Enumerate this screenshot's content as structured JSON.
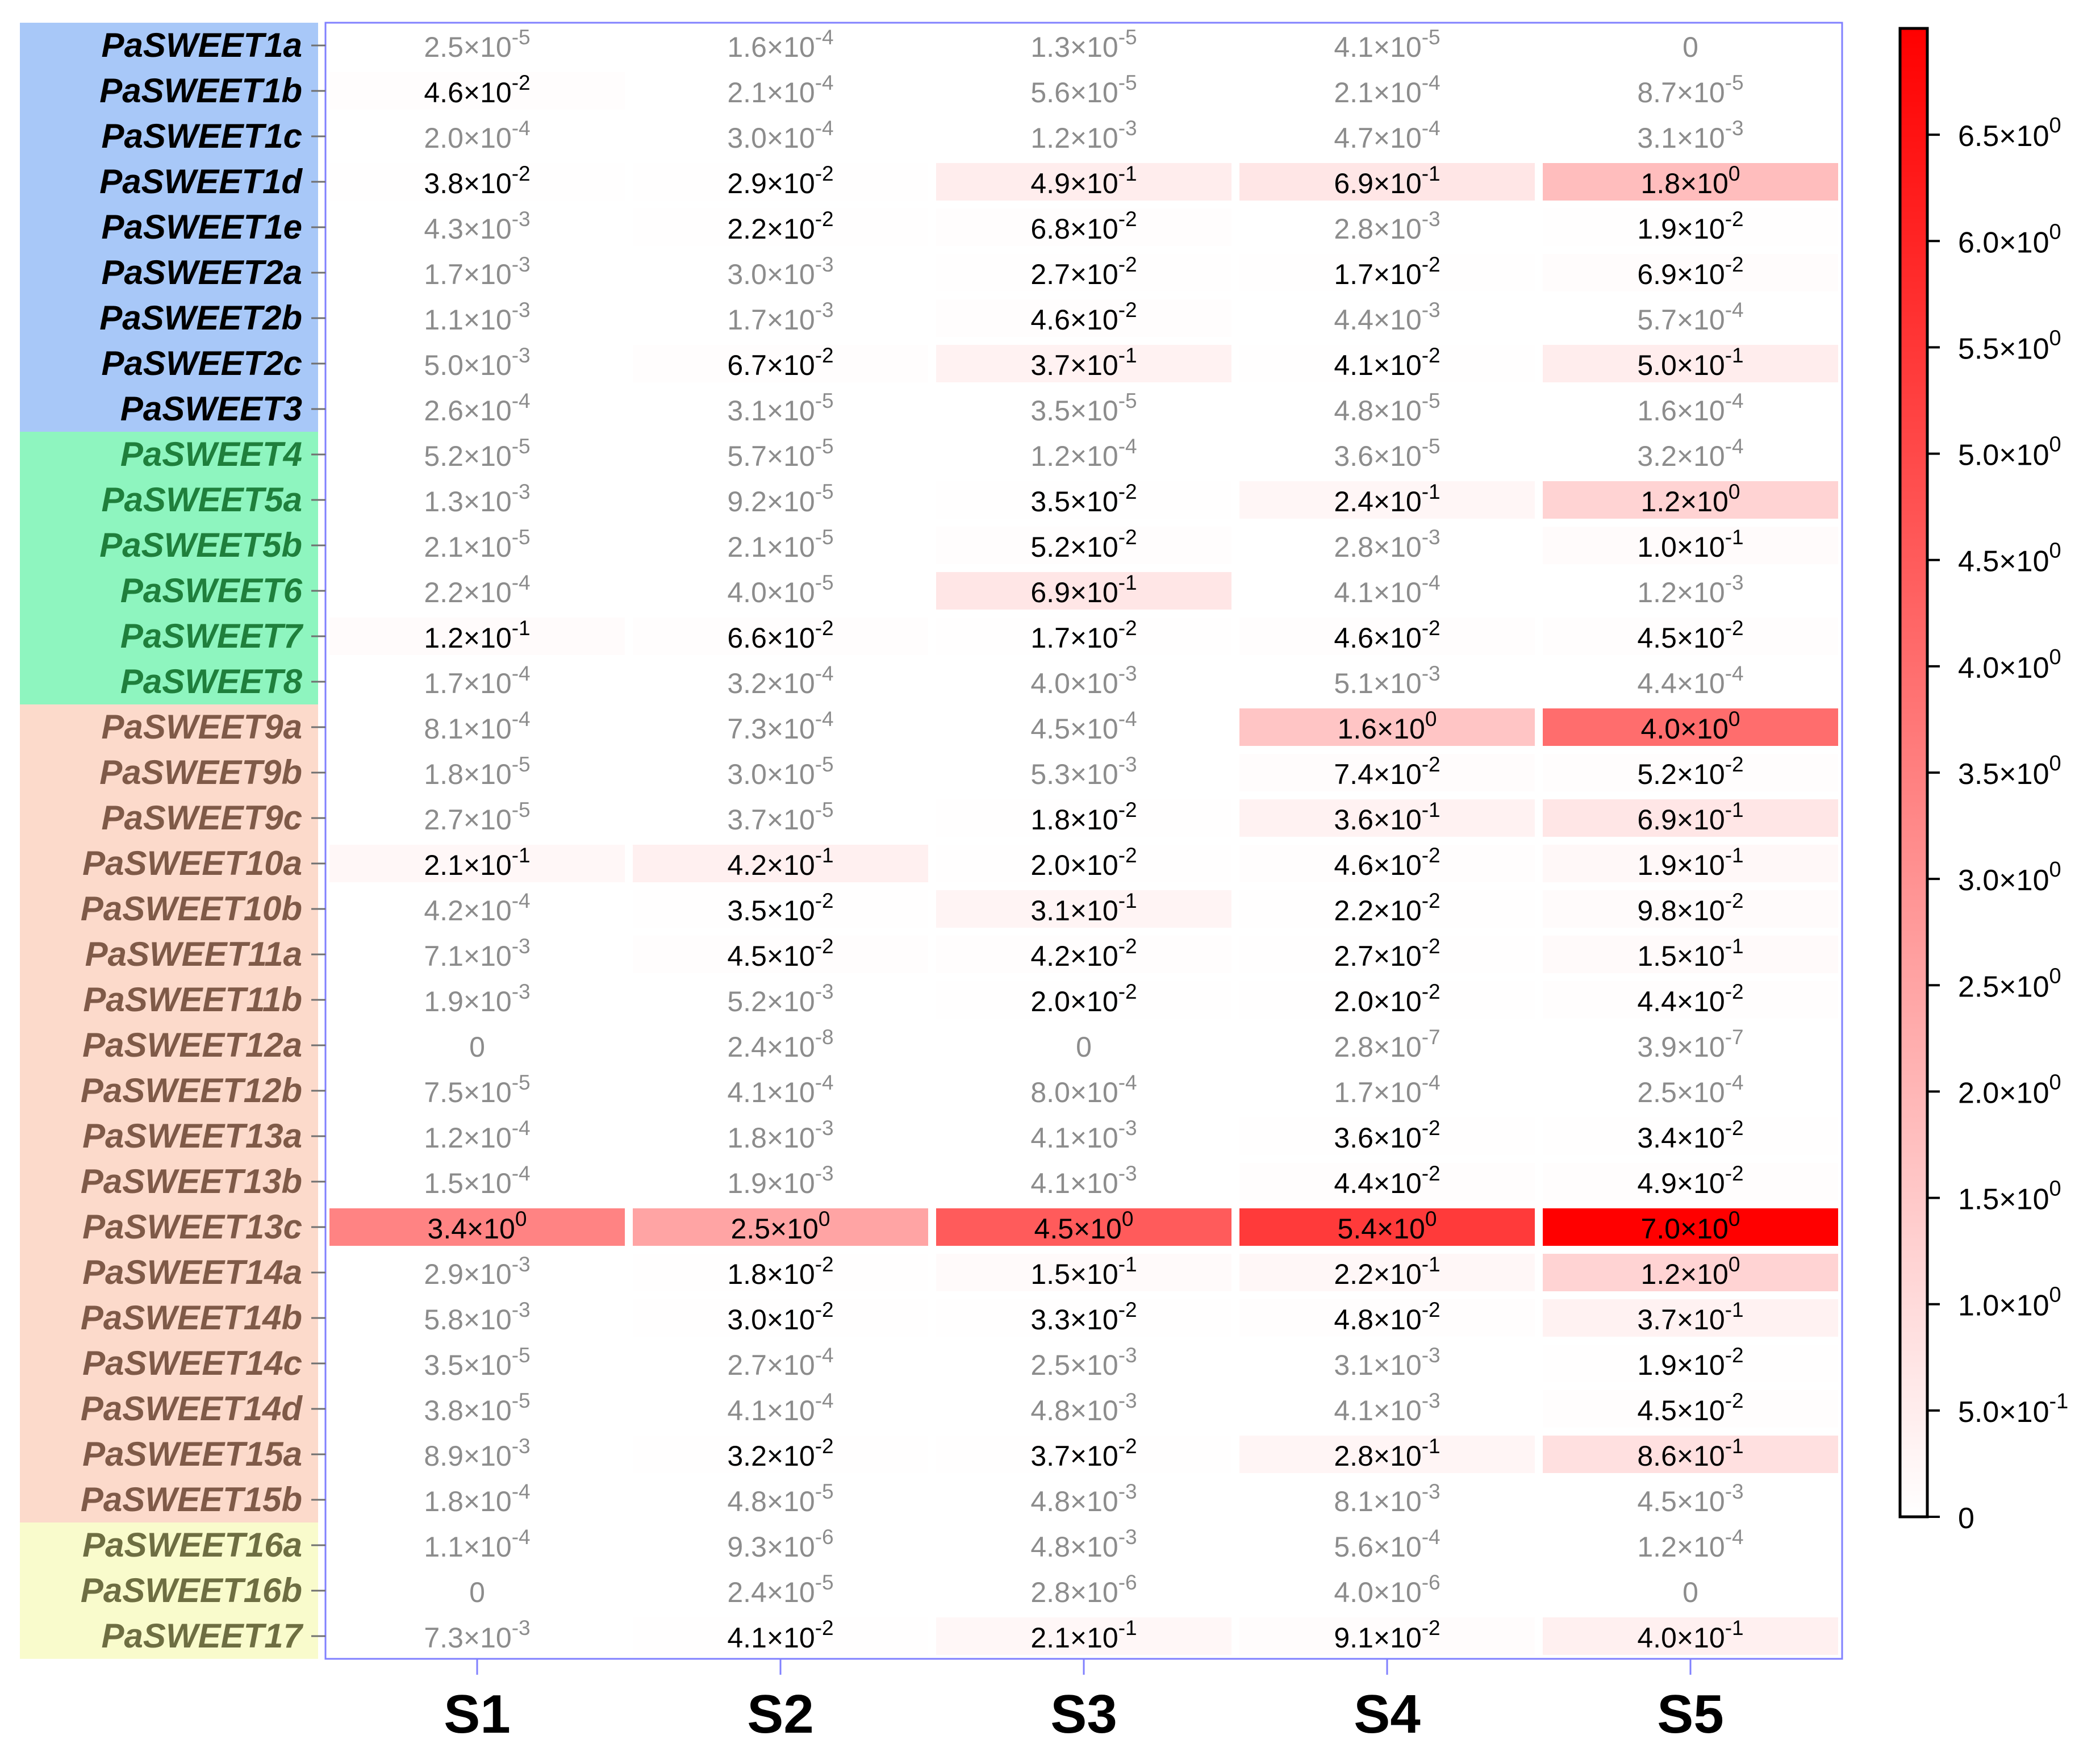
{
  "chart_data": {
    "type": "heatmap",
    "columns": [
      "S1",
      "S2",
      "S3",
      "S4",
      "S5"
    ],
    "rows": [
      "PaSWEET1a",
      "PaSWEET1b",
      "PaSWEET1c",
      "PaSWEET1d",
      "PaSWEET1e",
      "PaSWEET2a",
      "PaSWEET2b",
      "PaSWEET2c",
      "PaSWEET3",
      "PaSWEET4",
      "PaSWEET5a",
      "PaSWEET5b",
      "PaSWEET6",
      "PaSWEET7",
      "PaSWEET8",
      "PaSWEET9a",
      "PaSWEET9b",
      "PaSWEET9c",
      "PaSWEET10a",
      "PaSWEET10b",
      "PaSWEET11a",
      "PaSWEET11b",
      "PaSWEET12a",
      "PaSWEET12b",
      "PaSWEET13a",
      "PaSWEET13b",
      "PaSWEET13c",
      "PaSWEET14a",
      "PaSWEET14b",
      "PaSWEET14c",
      "PaSWEET14d",
      "PaSWEET15a",
      "PaSWEET15b",
      "PaSWEET16a",
      "PaSWEET16b",
      "PaSWEET17"
    ],
    "values": [
      [
        2.5e-05,
        0.00016,
        1.3e-05,
        4.1e-05,
        0
      ],
      [
        0.046,
        0.00021,
        5.6e-05,
        0.00021,
        8.7e-05
      ],
      [
        0.0002,
        0.0003,
        0.0012,
        0.00047,
        0.0031
      ],
      [
        0.038,
        0.029,
        0.49,
        0.69,
        1.8
      ],
      [
        0.0043,
        0.022,
        0.068,
        0.0028,
        0.019
      ],
      [
        0.0017,
        0.003,
        0.027,
        0.017,
        0.069
      ],
      [
        0.0011,
        0.0017,
        0.046,
        0.0044,
        0.00057
      ],
      [
        0.005,
        0.067,
        0.37,
        0.041,
        0.5
      ],
      [
        0.00026,
        3.1e-05,
        3.5e-05,
        4.8e-05,
        0.00016
      ],
      [
        5.2e-05,
        5.7e-05,
        0.00012,
        3.6e-05,
        0.00032
      ],
      [
        0.0013,
        9.2e-05,
        0.035,
        0.24,
        1.2
      ],
      [
        2.1e-05,
        2.1e-05,
        0.052,
        0.0028,
        0.1
      ],
      [
        0.00022,
        4e-05,
        0.69,
        0.00041,
        0.0012
      ],
      [
        0.12,
        0.066,
        0.017,
        0.046,
        0.045
      ],
      [
        0.00017,
        0.00032,
        0.004,
        0.0051,
        0.00044
      ],
      [
        0.00081,
        0.00073,
        0.00045,
        1.6,
        4.0
      ],
      [
        1.8e-05,
        3e-05,
        0.0053,
        0.074,
        0.052
      ],
      [
        2.7e-05,
        3.7e-05,
        0.018,
        0.36,
        0.69
      ],
      [
        0.21,
        0.42,
        0.02,
        0.046,
        0.19
      ],
      [
        0.00042,
        0.035,
        0.31,
        0.022,
        0.098
      ],
      [
        0.0071,
        0.045,
        0.042,
        0.027,
        0.15
      ],
      [
        0.0019,
        0.0052,
        0.02,
        0.02,
        0.044
      ],
      [
        0,
        2.4e-08,
        0,
        2.8e-07,
        3.9e-07
      ],
      [
        7.5e-05,
        0.00041,
        0.0008,
        0.00017,
        0.00025
      ],
      [
        0.00012,
        0.0018,
        0.0041,
        0.036,
        0.034
      ],
      [
        0.00015,
        0.0019,
        0.0041,
        0.044,
        0.049
      ],
      [
        3.4,
        2.5,
        4.5,
        5.4,
        7.0
      ],
      [
        0.0029,
        0.018,
        0.15,
        0.22,
        1.2
      ],
      [
        0.0058,
        0.03,
        0.033,
        0.048,
        0.37
      ],
      [
        3.5e-05,
        0.00027,
        0.0025,
        0.0031,
        0.019
      ],
      [
        3.8e-05,
        0.00041,
        0.0048,
        0.0041,
        0.045
      ],
      [
        0.0089,
        0.032,
        0.037,
        0.28,
        0.86
      ],
      [
        0.00018,
        4.8e-05,
        0.0048,
        0.0081,
        0.0045
      ],
      [
        0.00011,
        9.3e-06,
        0.0048,
        0.00056,
        0.00012
      ],
      [
        0,
        2.4e-05,
        2.8e-06,
        4e-06,
        0
      ],
      [
        0.0073,
        0.041,
        0.21,
        0.091,
        0.4
      ]
    ],
    "cell_labels": [
      [
        [
          "2.5",
          "-5"
        ],
        [
          "1.6",
          "-4"
        ],
        [
          "1.3",
          "-5"
        ],
        [
          "4.1",
          "-5"
        ],
        [
          "0",
          ""
        ]
      ],
      [
        [
          "4.6",
          "-2"
        ],
        [
          "2.1",
          "-4"
        ],
        [
          "5.6",
          "-5"
        ],
        [
          "2.1",
          "-4"
        ],
        [
          "8.7",
          "-5"
        ]
      ],
      [
        [
          "2.0",
          "-4"
        ],
        [
          "3.0",
          "-4"
        ],
        [
          "1.2",
          "-3"
        ],
        [
          "4.7",
          "-4"
        ],
        [
          "3.1",
          "-3"
        ]
      ],
      [
        [
          "3.8",
          "-2"
        ],
        [
          "2.9",
          "-2"
        ],
        [
          "4.9",
          "-1"
        ],
        [
          "6.9",
          "-1"
        ],
        [
          "1.8",
          "0"
        ]
      ],
      [
        [
          "4.3",
          "-3"
        ],
        [
          "2.2",
          "-2"
        ],
        [
          "6.8",
          "-2"
        ],
        [
          "2.8",
          "-3"
        ],
        [
          "1.9",
          "-2"
        ]
      ],
      [
        [
          "1.7",
          "-3"
        ],
        [
          "3.0",
          "-3"
        ],
        [
          "2.7",
          "-2"
        ],
        [
          "1.7",
          "-2"
        ],
        [
          "6.9",
          "-2"
        ]
      ],
      [
        [
          "1.1",
          "-3"
        ],
        [
          "1.7",
          "-3"
        ],
        [
          "4.6",
          "-2"
        ],
        [
          "4.4",
          "-3"
        ],
        [
          "5.7",
          "-4"
        ]
      ],
      [
        [
          "5.0",
          "-3"
        ],
        [
          "6.7",
          "-2"
        ],
        [
          "3.7",
          "-1"
        ],
        [
          "4.1",
          "-2"
        ],
        [
          "5.0",
          "-1"
        ]
      ],
      [
        [
          "2.6",
          "-4"
        ],
        [
          "3.1",
          "-5"
        ],
        [
          "3.5",
          "-5"
        ],
        [
          "4.8",
          "-5"
        ],
        [
          "1.6",
          "-4"
        ]
      ],
      [
        [
          "5.2",
          "-5"
        ],
        [
          "5.7",
          "-5"
        ],
        [
          "1.2",
          "-4"
        ],
        [
          "3.6",
          "-5"
        ],
        [
          "3.2",
          "-4"
        ]
      ],
      [
        [
          "1.3",
          "-3"
        ],
        [
          "9.2",
          "-5"
        ],
        [
          "3.5",
          "-2"
        ],
        [
          "2.4",
          "-1"
        ],
        [
          "1.2",
          "0"
        ]
      ],
      [
        [
          "2.1",
          "-5"
        ],
        [
          "2.1",
          "-5"
        ],
        [
          "5.2",
          "-2"
        ],
        [
          "2.8",
          "-3"
        ],
        [
          "1.0",
          "-1"
        ]
      ],
      [
        [
          "2.2",
          "-4"
        ],
        [
          "4.0",
          "-5"
        ],
        [
          "6.9",
          "-1"
        ],
        [
          "4.1",
          "-4"
        ],
        [
          "1.2",
          "-3"
        ]
      ],
      [
        [
          "1.2",
          "-1"
        ],
        [
          "6.6",
          "-2"
        ],
        [
          "1.7",
          "-2"
        ],
        [
          "4.6",
          "-2"
        ],
        [
          "4.5",
          "-2"
        ]
      ],
      [
        [
          "1.7",
          "-4"
        ],
        [
          "3.2",
          "-4"
        ],
        [
          "4.0",
          "-3"
        ],
        [
          "5.1",
          "-3"
        ],
        [
          "4.4",
          "-4"
        ]
      ],
      [
        [
          "8.1",
          "-4"
        ],
        [
          "7.3",
          "-4"
        ],
        [
          "4.5",
          "-4"
        ],
        [
          "1.6",
          "0"
        ],
        [
          "4.0",
          "0"
        ]
      ],
      [
        [
          "1.8",
          "-5"
        ],
        [
          "3.0",
          "-5"
        ],
        [
          "5.3",
          "-3"
        ],
        [
          "7.4",
          "-2"
        ],
        [
          "5.2",
          "-2"
        ]
      ],
      [
        [
          "2.7",
          "-5"
        ],
        [
          "3.7",
          "-5"
        ],
        [
          "1.8",
          "-2"
        ],
        [
          "3.6",
          "-1"
        ],
        [
          "6.9",
          "-1"
        ]
      ],
      [
        [
          "2.1",
          "-1"
        ],
        [
          "4.2",
          "-1"
        ],
        [
          "2.0",
          "-2"
        ],
        [
          "4.6",
          "-2"
        ],
        [
          "1.9",
          "-1"
        ]
      ],
      [
        [
          "4.2",
          "-4"
        ],
        [
          "3.5",
          "-2"
        ],
        [
          "3.1",
          "-1"
        ],
        [
          "2.2",
          "-2"
        ],
        [
          "9.8",
          "-2"
        ]
      ],
      [
        [
          "7.1",
          "-3"
        ],
        [
          "4.5",
          "-2"
        ],
        [
          "4.2",
          "-2"
        ],
        [
          "2.7",
          "-2"
        ],
        [
          "1.5",
          "-1"
        ]
      ],
      [
        [
          "1.9",
          "-3"
        ],
        [
          "5.2",
          "-3"
        ],
        [
          "2.0",
          "-2"
        ],
        [
          "2.0",
          "-2"
        ],
        [
          "4.4",
          "-2"
        ]
      ],
      [
        [
          "0",
          ""
        ],
        [
          "2.4",
          "-8"
        ],
        [
          "0",
          ""
        ],
        [
          "2.8",
          "-7"
        ],
        [
          "3.9",
          "-7"
        ]
      ],
      [
        [
          "7.5",
          "-5"
        ],
        [
          "4.1",
          "-4"
        ],
        [
          "8.0",
          "-4"
        ],
        [
          "1.7",
          "-4"
        ],
        [
          "2.5",
          "-4"
        ]
      ],
      [
        [
          "1.2",
          "-4"
        ],
        [
          "1.8",
          "-3"
        ],
        [
          "4.1",
          "-3"
        ],
        [
          "3.6",
          "-2"
        ],
        [
          "3.4",
          "-2"
        ]
      ],
      [
        [
          "1.5",
          "-4"
        ],
        [
          "1.9",
          "-3"
        ],
        [
          "4.1",
          "-3"
        ],
        [
          "4.4",
          "-2"
        ],
        [
          "4.9",
          "-2"
        ]
      ],
      [
        [
          "3.4",
          "0"
        ],
        [
          "2.5",
          "0"
        ],
        [
          "4.5",
          "0"
        ],
        [
          "5.4",
          "0"
        ],
        [
          "7.0",
          "0"
        ]
      ],
      [
        [
          "2.9",
          "-3"
        ],
        [
          "1.8",
          "-2"
        ],
        [
          "1.5",
          "-1"
        ],
        [
          "2.2",
          "-1"
        ],
        [
          "1.2",
          "0"
        ]
      ],
      [
        [
          "5.8",
          "-3"
        ],
        [
          "3.0",
          "-2"
        ],
        [
          "3.3",
          "-2"
        ],
        [
          "4.8",
          "-2"
        ],
        [
          "3.7",
          "-1"
        ]
      ],
      [
        [
          "3.5",
          "-5"
        ],
        [
          "2.7",
          "-4"
        ],
        [
          "2.5",
          "-3"
        ],
        [
          "3.1",
          "-3"
        ],
        [
          "1.9",
          "-2"
        ]
      ],
      [
        [
          "3.8",
          "-5"
        ],
        [
          "4.1",
          "-4"
        ],
        [
          "4.8",
          "-3"
        ],
        [
          "4.1",
          "-3"
        ],
        [
          "4.5",
          "-2"
        ]
      ],
      [
        [
          "8.9",
          "-3"
        ],
        [
          "3.2",
          "-2"
        ],
        [
          "3.7",
          "-2"
        ],
        [
          "2.8",
          "-1"
        ],
        [
          "8.6",
          "-1"
        ]
      ],
      [
        [
          "1.8",
          "-4"
        ],
        [
          "4.8",
          "-5"
        ],
        [
          "4.8",
          "-3"
        ],
        [
          "8.1",
          "-3"
        ],
        [
          "4.5",
          "-3"
        ]
      ],
      [
        [
          "1.1",
          "-4"
        ],
        [
          "9.3",
          "-6"
        ],
        [
          "4.8",
          "-3"
        ],
        [
          "5.6",
          "-4"
        ],
        [
          "1.2",
          "-4"
        ]
      ],
      [
        [
          "0",
          ""
        ],
        [
          "2.4",
          "-5"
        ],
        [
          "2.8",
          "-6"
        ],
        [
          "4.0",
          "-6"
        ],
        [
          "0",
          ""
        ]
      ],
      [
        [
          "7.3",
          "-3"
        ],
        [
          "4.1",
          "-2"
        ],
        [
          "2.1",
          "-1"
        ],
        [
          "9.1",
          "-2"
        ],
        [
          "4.0",
          "-1"
        ]
      ]
    ],
    "row_groups": [
      {
        "start": 0,
        "end": 8,
        "bg_color": "#a8c8f8",
        "text_color": "#000000"
      },
      {
        "start": 9,
        "end": 14,
        "bg_color": "#8ef5bf",
        "text_color": "#1f7f3c"
      },
      {
        "start": 15,
        "end": 32,
        "bg_color": "#fcdacb",
        "text_color": "#7f5a48"
      },
      {
        "start": 33,
        "end": 35,
        "bg_color": "#f9fbcc",
        "text_color": "#6e6e42"
      }
    ],
    "colorbar": {
      "range": [
        0,
        7.0
      ],
      "ticks": [
        {
          "value": 0,
          "mantissa": "0",
          "exponent": ""
        },
        {
          "value": 0.5,
          "mantissa": "5.0×10",
          "exponent": "-1"
        },
        {
          "value": 1.0,
          "mantissa": "1.0×10",
          "exponent": "0"
        },
        {
          "value": 1.5,
          "mantissa": "1.5×10",
          "exponent": "0"
        },
        {
          "value": 2.0,
          "mantissa": "2.0×10",
          "exponent": "0"
        },
        {
          "value": 2.5,
          "mantissa": "2.5×10",
          "exponent": "0"
        },
        {
          "value": 3.0,
          "mantissa": "3.0×10",
          "exponent": "0"
        },
        {
          "value": 3.5,
          "mantissa": "3.5×10",
          "exponent": "0"
        },
        {
          "value": 4.0,
          "mantissa": "4.0×10",
          "exponent": "0"
        },
        {
          "value": 4.5,
          "mantissa": "4.5×10",
          "exponent": "0"
        },
        {
          "value": 5.0,
          "mantissa": "5.0×10",
          "exponent": "0"
        },
        {
          "value": 5.5,
          "mantissa": "5.5×10",
          "exponent": "0"
        },
        {
          "value": 6.0,
          "mantissa": "6.0×10",
          "exponent": "0"
        },
        {
          "value": 6.5,
          "mantissa": "6.5×10",
          "exponent": "0"
        }
      ],
      "color_low": "#ffffff",
      "color_high": "#ff0000"
    },
    "significance_threshold": 0.01,
    "colors": {
      "significant_text": "#000000",
      "minor_text": "#8c8c8c",
      "frame": "#8080ff"
    },
    "title": "",
    "xlabel": "",
    "ylabel": "",
    "legend": "right"
  }
}
